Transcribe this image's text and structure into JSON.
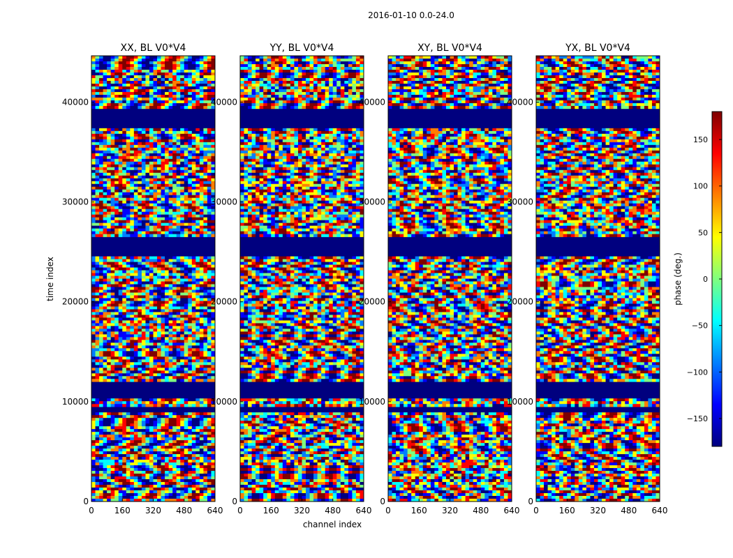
{
  "figure": {
    "suptitle": "2016-01-10 0.0-24.0",
    "shared_ylabel": "time index",
    "shared_xlabel": "channel index"
  },
  "colorbar": {
    "label": "phase (deg.)",
    "range": [
      -180,
      180
    ],
    "ticks": [
      -150,
      -100,
      -50,
      0,
      50,
      100,
      150
    ],
    "tick_labels": [
      "−150",
      "−100",
      "−50",
      "0",
      "50",
      "100",
      "150"
    ],
    "colormap": "jet",
    "colors": [
      "#00007f",
      "#0000ff",
      "#007fff",
      "#00ffff",
      "#7fff7f",
      "#ffff00",
      "#ff7f00",
      "#ff0000",
      "#7f0000"
    ]
  },
  "chart_data": [
    {
      "type": "heatmap",
      "title": "XX, BL V0*V4",
      "xlabel": "",
      "ylabel": "time index",
      "xlim": [
        0,
        640
      ],
      "ylim": [
        0,
        44640
      ],
      "xticks": [
        0,
        160,
        320,
        480,
        640
      ],
      "yticks": [
        0,
        10000,
        20000,
        30000,
        40000
      ],
      "value_range": [
        -180,
        180
      ],
      "value_label": "phase (deg.)"
    },
    {
      "type": "heatmap",
      "title": "YY, BL V0*V4",
      "xlabel": "channel index",
      "ylabel": "",
      "xlim": [
        0,
        640
      ],
      "ylim": [
        0,
        44640
      ],
      "xticks": [
        0,
        160,
        320,
        480,
        640
      ],
      "yticks": [
        0,
        10000,
        20000,
        30000,
        40000
      ],
      "value_range": [
        -180,
        180
      ],
      "value_label": "phase (deg.)"
    },
    {
      "type": "heatmap",
      "title": "XY, BL V0*V4",
      "xlabel": "",
      "ylabel": "",
      "xlim": [
        0,
        640
      ],
      "ylim": [
        0,
        44640
      ],
      "xticks": [
        0,
        160,
        320,
        480,
        640
      ],
      "yticks": [
        0,
        10000,
        20000,
        30000,
        40000
      ],
      "value_range": [
        -180,
        180
      ],
      "value_label": "phase (deg.)"
    },
    {
      "type": "heatmap",
      "title": "YX, BL V0*V4",
      "xlabel": "",
      "ylabel": "",
      "xlim": [
        0,
        640
      ],
      "ylim": [
        0,
        44640
      ],
      "xticks": [
        0,
        160,
        320,
        480,
        640
      ],
      "yticks": [
        0,
        10000,
        20000,
        30000,
        40000
      ],
      "value_range": [
        -180,
        180
      ],
      "value_label": "phase (deg.)"
    }
  ]
}
